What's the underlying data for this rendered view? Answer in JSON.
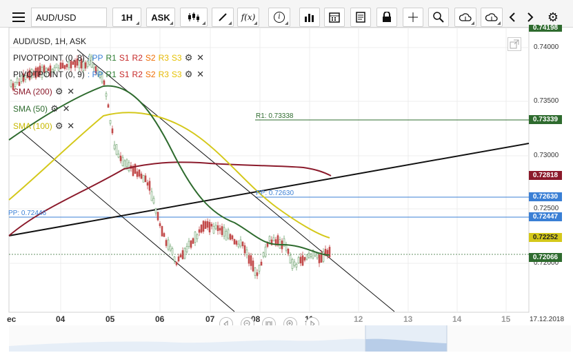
{
  "toolbar": {
    "symbol_value": "AUD/USD",
    "timeframe_label": "1H",
    "price_type_label": "ASK",
    "indicator_fx_label": "f(x)",
    "info_label": "i"
  },
  "chart": {
    "title": "AUD/USD, 1H, ASK",
    "legend": [
      {
        "name": "PIVOTPOINT (0, 8)",
        "labels": [
          ": PP",
          "R1",
          "S1",
          "R2",
          "S2",
          "R3",
          "S3"
        ]
      },
      {
        "name": "PIVOTPOINT (0, 9)",
        "labels": [
          ": PP",
          "R1",
          "S1",
          "R2",
          "S2",
          "R3",
          "S3"
        ]
      },
      {
        "name": "SMA (200)",
        "color": "#8b1a2b"
      },
      {
        "name": "SMA (50)",
        "color": "#2e6b2e"
      },
      {
        "name": "SMA (100)",
        "color": "#d4c81a"
      }
    ],
    "legend_colors": {
      "PP": "#3a7fd5",
      "R1": "#2e7d32",
      "S1": "#c62828",
      "R2": "#c62828",
      "S2": "#ef6c00",
      "R3": "#e6b800",
      "S3": "#e6c200"
    },
    "annotations": {
      "r1": "R1: 0.73338",
      "pp_recent": "PP: 0.72630",
      "pp_prior": "PP: 0.72446"
    },
    "y_ticks": [
      "0.74000",
      "0.73500",
      "0.73000",
      "0.72500",
      "0.72000"
    ],
    "y_top_partial": "0.74198",
    "price_tags": [
      {
        "value": "0.73339",
        "color": "#2e6b2e"
      },
      {
        "value": "0.72818",
        "color": "#8b1a2b"
      },
      {
        "value": "0.72630",
        "color": "#3a7fd5"
      },
      {
        "value": "0.72447",
        "color": "#3a7fd5"
      },
      {
        "value": "0.72252",
        "color": "#d4c81a"
      },
      {
        "value": "0.72066",
        "color": "#2e6b2e"
      }
    ],
    "x_ticks": [
      "ec",
      "04",
      "05",
      "06",
      "07",
      "08",
      "11",
      "12",
      "13",
      "14",
      "15"
    ],
    "date_label": "17.12.2018"
  },
  "chart_data": {
    "type": "candlestick",
    "title": "AUD/USD, 1H, ASK",
    "y_ticks": [
      0.74,
      0.735,
      0.73,
      0.725,
      0.72
    ],
    "lines": [
      {
        "name": "SMA (200)",
        "color": "#8b1a2b"
      },
      {
        "name": "SMA (50)",
        "color": "#2e6b2e"
      },
      {
        "name": "SMA (100)",
        "color": "#d4c81a"
      }
    ],
    "levels": [
      {
        "label": "R1: 0.73338",
        "value": 0.73338
      },
      {
        "label": "PP: 0.72630",
        "value": 0.7263
      },
      {
        "label": "PP: 0.72446",
        "value": 0.72446
      }
    ],
    "last_price": 0.72066
  },
  "colors": {
    "bg": "#ffffff",
    "toolbar": "#f5f5f5",
    "grid": "#e8e8e8"
  }
}
